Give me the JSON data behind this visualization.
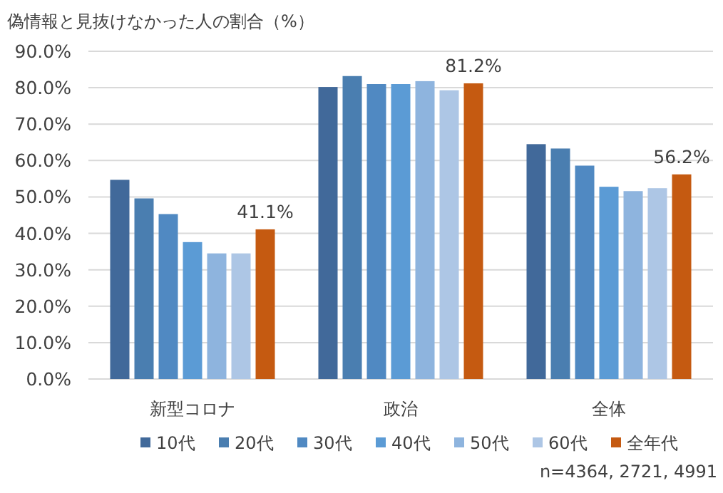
{
  "chart_data": {
    "type": "bar",
    "title": "偽情報と見抜けなかった人の割合（%）",
    "categories": [
      "新型コロナ",
      "政治",
      "全体"
    ],
    "series": [
      {
        "name": "10代",
        "color": "#41699a",
        "values": [
          54.7,
          80.2,
          64.5
        ]
      },
      {
        "name": "20代",
        "color": "#4a7eb0",
        "values": [
          49.6,
          83.2,
          63.3
        ]
      },
      {
        "name": "30代",
        "color": "#5089c2",
        "values": [
          45.3,
          81.0,
          58.6
        ]
      },
      {
        "name": "40代",
        "color": "#5b9bd5",
        "values": [
          37.6,
          81.0,
          52.8
        ]
      },
      {
        "name": "50代",
        "color": "#8eb4de",
        "values": [
          34.5,
          81.8,
          51.6
        ]
      },
      {
        "name": "60代",
        "color": "#adc6e5",
        "values": [
          34.5,
          79.3,
          52.4
        ]
      },
      {
        "name": "全年代",
        "color": "#c55a11",
        "values": [
          41.1,
          81.2,
          56.2
        ],
        "value_labels": [
          "41.1%",
          "81.2%",
          "56.2%"
        ]
      }
    ],
    "ylim": [
      0,
      90
    ],
    "yticks": [
      {
        "value": 0,
        "label": "0.0%"
      },
      {
        "value": 10,
        "label": "10.0%"
      },
      {
        "value": 20,
        "label": "20.0%"
      },
      {
        "value": 30,
        "label": "30.0%"
      },
      {
        "value": 40,
        "label": "40.0%"
      },
      {
        "value": 50,
        "label": "50.0%"
      },
      {
        "value": 60,
        "label": "60.0%"
      },
      {
        "value": 70,
        "label": "70.0%"
      },
      {
        "value": 80,
        "label": "80.0%"
      },
      {
        "value": 90,
        "label": "90.0%"
      }
    ],
    "grid": "y",
    "legend": "bottom",
    "annotations": [
      "n=4364, 2721, 4991"
    ]
  }
}
